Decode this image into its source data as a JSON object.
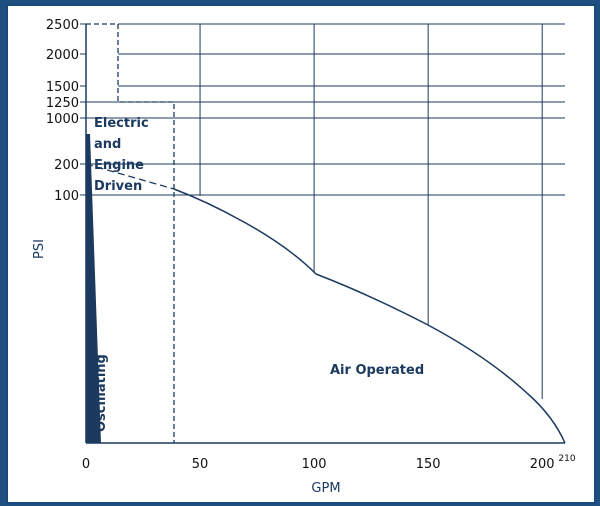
{
  "chart_data": {
    "type": "area",
    "title": "",
    "xlabel": "GPM",
    "ylabel": "PSI",
    "x_ticks": [
      0,
      50,
      100,
      150,
      200,
      210
    ],
    "x_tick_labels": [
      "0",
      "50",
      "100",
      "150",
      "200",
      "210"
    ],
    "y_tick_labels": [
      "2500",
      "2000",
      "1500",
      "1250",
      "1000",
      "200",
      "100"
    ],
    "xlim": [
      0,
      210
    ],
    "grid": true,
    "regions": [
      {
        "name": "Electric and Engine Driven",
        "label_lines": [
          "Electric",
          "and",
          "Engine",
          "Driven"
        ],
        "boundary": "dashed"
      },
      {
        "name": "Air Operated",
        "label_lines": [
          "Air Operated"
        ],
        "boundary": "solid"
      },
      {
        "name": "Oscillating",
        "label_lines": [
          "Oscillating"
        ],
        "boundary": "filled"
      }
    ],
    "air_operated_curve": [
      {
        "gpm": 0,
        "psi": 200
      },
      {
        "gpm": 37,
        "psi": 115
      },
      {
        "gpm": 50,
        "psi": 100
      },
      {
        "gpm": 100,
        "psi": "kink"
      },
      {
        "gpm": 150,
        "psi": "low"
      },
      {
        "gpm": 210,
        "psi": 0
      }
    ]
  },
  "colors": {
    "frame": "#1f4f80",
    "line": "#1c3a60",
    "grid": "#1c3a60"
  }
}
